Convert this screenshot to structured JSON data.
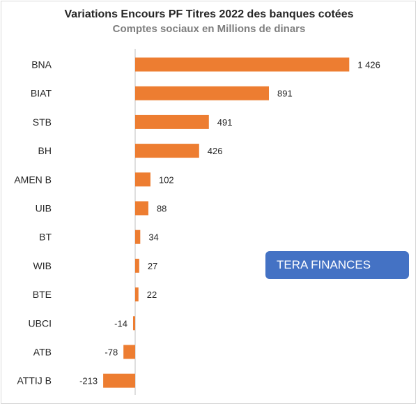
{
  "title": "Variations Encours PF Titres 2022 des banques cotées",
  "subtitle": "Comptes sociaux en Millions de dinars",
  "badge": "TERA FINANCES",
  "colors": {
    "bar": "#ed7d31",
    "axis": "#bfbfbf",
    "badge": "#4472c4"
  },
  "chart_data": {
    "type": "bar",
    "orientation": "horizontal",
    "title": "Variations Encours PF Titres 2022 des banques cotées",
    "subtitle": "Comptes sociaux en Millions de dinars",
    "categories": [
      "BNA",
      "BIAT",
      "STB",
      "BH",
      "AMEN B",
      "UIB",
      "BT",
      "WIB",
      "BTE",
      "UBCI",
      "ATB",
      "ATTIJ B"
    ],
    "values": [
      1426,
      891,
      491,
      426,
      102,
      88,
      34,
      27,
      22,
      -14,
      -78,
      -213
    ],
    "value_labels": [
      "1 426",
      "891",
      "491",
      "426",
      "102",
      "88",
      "34",
      "27",
      "22",
      "-14",
      "-78",
      "-213"
    ],
    "xlim": [
      -213,
      1426
    ],
    "grid": false,
    "legend": "none"
  }
}
